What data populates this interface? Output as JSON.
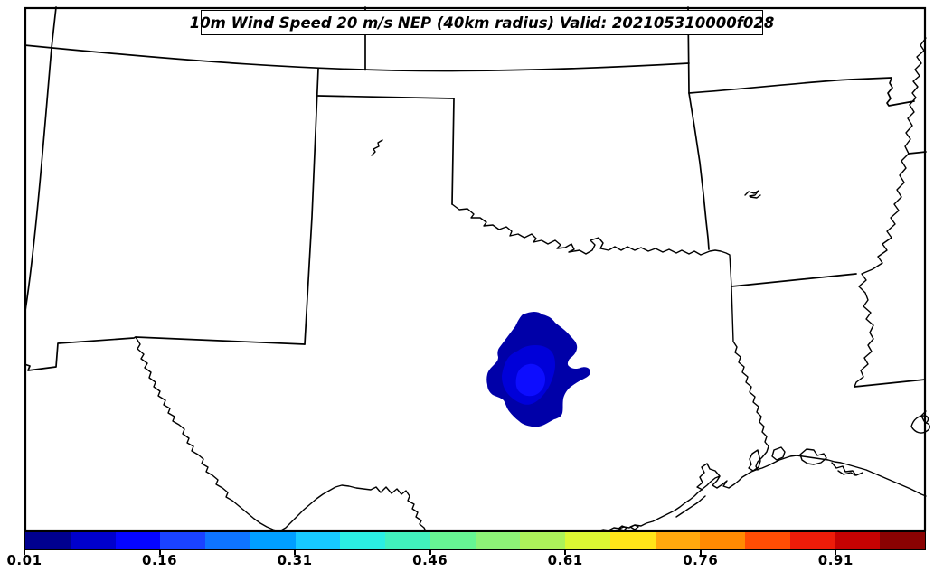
{
  "title": {
    "text": "10m Wind Speed 20 m/s NEP (40km radius) Valid: 202105310000f028"
  },
  "colorbar": {
    "scale_min": 0.01,
    "scale_max": 1.01,
    "segment_colors": [
      "#00008F",
      "#0000CC",
      "#0505FF",
      "#1A43FF",
      "#0E74FF",
      "#009FFF",
      "#17CAFF",
      "#2BEFE3",
      "#41F1BD",
      "#66F693",
      "#8DF377",
      "#ACF25A",
      "#DCF733",
      "#FFE419",
      "#FFA80D",
      "#FF8A02",
      "#FF4D04",
      "#EE1C09",
      "#C50202",
      "#8A0202"
    ],
    "tick_labels": [
      "0.01",
      "0.16",
      "0.31",
      "0.46",
      "0.61",
      "0.76",
      "0.91"
    ],
    "tick_values": [
      0.01,
      0.16,
      0.31,
      0.46,
      0.61,
      0.76,
      0.91
    ]
  },
  "map": {
    "contours": [
      {
        "level_ge": 0.01,
        "color": "#0000A8"
      },
      {
        "level_ge": 0.06,
        "color": "#0000D9"
      },
      {
        "level_ge": 0.11,
        "color": "#0D0DFF"
      }
    ]
  },
  "chart_data": {
    "type": "filled_contour_map",
    "title": "10m Wind Speed 20 m/s NEP (40km radius) Valid: 202105310000f028",
    "colorbar_ticks": [
      0.01,
      0.16,
      0.31,
      0.46,
      0.61,
      0.76,
      0.91
    ],
    "colorbar_range": [
      0.01,
      1.01
    ],
    "contour_interval": 0.05,
    "plotted_feature": "Neighborhood Ensemble Probability of 10m wind speed >= 20 m/s",
    "contour_region": {
      "location": "north-central Texas",
      "levels_shown": [
        0.01,
        0.06,
        0.11
      ],
      "max_probability_band": "0.11-0.16"
    },
    "legend_position": "bottom horizontal colorbar"
  }
}
